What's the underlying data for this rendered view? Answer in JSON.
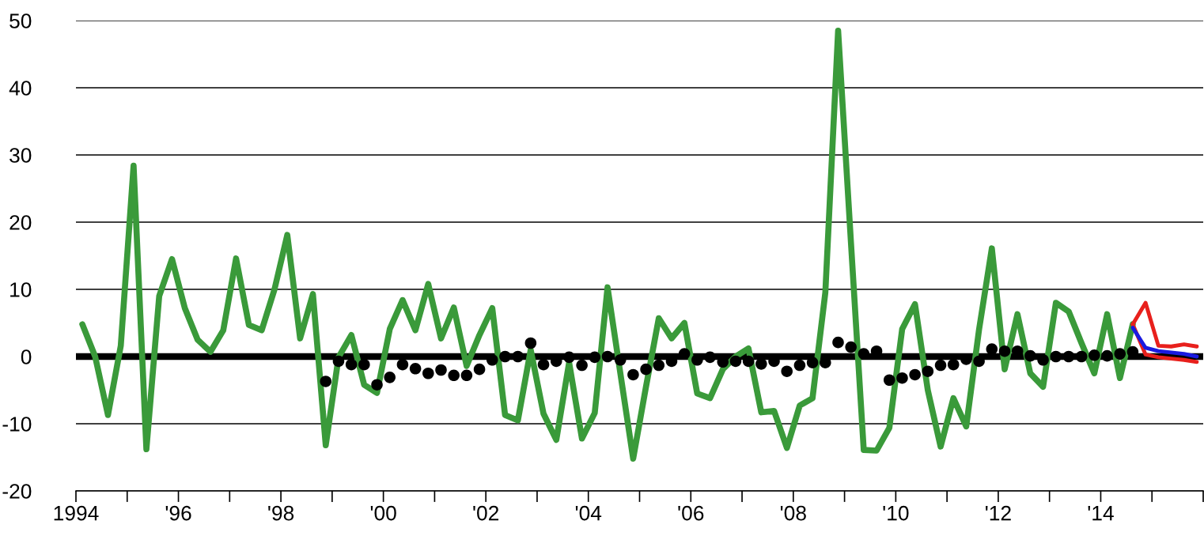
{
  "chart_data": {
    "type": "line",
    "xlim": [
      1994,
      2016
    ],
    "xticks": [
      {
        "value": 1994,
        "label": "1994"
      },
      {
        "value": 1995,
        "label": null
      },
      {
        "value": 1996,
        "label": "'96"
      },
      {
        "value": 1997,
        "label": null
      },
      {
        "value": 1998,
        "label": "'98"
      },
      {
        "value": 1999,
        "label": null
      },
      {
        "value": 2000,
        "label": "'00"
      },
      {
        "value": 2001,
        "label": null
      },
      {
        "value": 2002,
        "label": "'02"
      },
      {
        "value": 2003,
        "label": null
      },
      {
        "value": 2004,
        "label": "'04"
      },
      {
        "value": 2005,
        "label": null
      },
      {
        "value": 2006,
        "label": "'06"
      },
      {
        "value": 2007,
        "label": null
      },
      {
        "value": 2008,
        "label": "'08"
      },
      {
        "value": 2009,
        "label": null
      },
      {
        "value": 2010,
        "label": "'10"
      },
      {
        "value": 2011,
        "label": null
      },
      {
        "value": 2012,
        "label": "'12"
      },
      {
        "value": 2013,
        "label": null
      },
      {
        "value": 2014,
        "label": "'14"
      },
      {
        "value": 2015,
        "label": null
      },
      {
        "value": 2016,
        "label": null
      }
    ],
    "ylim": [
      -20,
      50
    ],
    "yticks": [
      -20,
      -10,
      0,
      10,
      20,
      30,
      40,
      50
    ],
    "grid": "y",
    "ref_lines": [
      {
        "axis": "y",
        "value": 0,
        "color": "#000000"
      }
    ],
    "series": [
      {
        "color": "#3a9a3a",
        "marker": "none",
        "x": [
          1994.125,
          1994.375,
          1994.625,
          1994.875,
          1995.125,
          1995.375,
          1995.625,
          1995.875,
          1996.125,
          1996.375,
          1996.625,
          1996.875,
          1997.125,
          1997.375,
          1997.625,
          1997.875,
          1998.125,
          1998.375,
          1998.625,
          1998.875,
          1999.125,
          1999.375,
          1999.625,
          1999.875,
          2000.125,
          2000.375,
          2000.625,
          2000.875,
          2001.125,
          2001.375,
          2001.625,
          2001.875,
          2002.125,
          2002.375,
          2002.625,
          2002.875,
          2003.125,
          2003.375,
          2003.625,
          2003.875,
          2004.125,
          2004.375,
          2004.625,
          2004.875,
          2005.125,
          2005.375,
          2005.625,
          2005.875,
          2006.125,
          2006.375,
          2006.625,
          2006.875,
          2007.125,
          2007.375,
          2007.625,
          2007.875,
          2008.125,
          2008.375,
          2008.625,
          2008.875,
          2009.125,
          2009.375,
          2009.625,
          2009.875,
          2010.125,
          2010.375,
          2010.625,
          2010.875,
          2011.125,
          2011.375,
          2011.625,
          2011.875,
          2012.125,
          2012.375,
          2012.625,
          2012.875,
          2013.125,
          2013.375,
          2013.625,
          2013.875,
          2014.125,
          2014.375,
          2014.625
        ],
        "values": [
          4.8,
          0,
          -8.7,
          1.6,
          28.4,
          -13.8,
          9.0,
          14.5,
          7.2,
          2.5,
          0.7,
          3.9,
          14.6,
          4.7,
          3.9,
          10,
          18.1,
          2.7,
          9.3,
          -13.2,
          -0.1,
          3.2,
          -4.2,
          -5.4,
          4.1,
          8.4,
          3.9,
          10.8,
          2.7,
          7.3,
          -1.4,
          3.2,
          7.2,
          -8.7,
          -9.5,
          1,
          -8.5,
          -12.4,
          -0.9,
          -12.2,
          -8.4,
          10.3,
          -2.5,
          -15.2,
          -4.5,
          5.7,
          2.7,
          5.0,
          -5.5,
          -6.2,
          -1.9,
          0,
          1.2,
          -8.3,
          -8.1,
          -13.6,
          -7.3,
          -6.2,
          9.5,
          48.5,
          17,
          -13.9,
          -14,
          -10.6,
          4.1,
          7.8,
          -5,
          -13.4,
          -6.2,
          -10.4,
          4,
          16.1,
          -1.9,
          6.3,
          -2.5,
          -4.5,
          8.0,
          6.7,
          2,
          -2.5,
          6.3,
          -3.2,
          4.8
        ]
      },
      {
        "type": "scatter",
        "color": "#000000",
        "marker": "circle",
        "x": [
          1998.875,
          1999.125,
          1999.375,
          1999.625,
          1999.875,
          2000.125,
          2000.375,
          2000.625,
          2000.875,
          2001.125,
          2001.375,
          2001.625,
          2001.875,
          2002.125,
          2002.375,
          2002.625,
          2002.875,
          2003.125,
          2003.375,
          2003.625,
          2003.875,
          2004.125,
          2004.375,
          2004.625,
          2004.875,
          2005.125,
          2005.375,
          2005.625,
          2005.875,
          2006.125,
          2006.375,
          2006.625,
          2006.875,
          2007.125,
          2007.375,
          2007.625,
          2007.875,
          2008.125,
          2008.375,
          2008.625,
          2008.875,
          2009.125,
          2009.375,
          2009.625,
          2009.875,
          2010.125,
          2010.375,
          2010.625,
          2010.875,
          2011.125,
          2011.375,
          2011.625,
          2011.875,
          2012.125,
          2012.375,
          2012.625,
          2012.875,
          2013.125,
          2013.375,
          2013.625,
          2013.875,
          2014.125,
          2014.375,
          2014.625
        ],
        "values": [
          -3.7,
          -0.7,
          -1.2,
          -1.2,
          -4.2,
          -3.1,
          -1.2,
          -1.8,
          -2.5,
          -2.0,
          -2.8,
          -2.8,
          -1.9,
          -0.5,
          0,
          0,
          2.0,
          -1.2,
          -0.7,
          -0.1,
          -1.3,
          -0.1,
          0,
          -0.5,
          -2.7,
          -1.9,
          -1.3,
          -0.7,
          0.4,
          -0.5,
          -0.1,
          -0.8,
          -0.7,
          -0.7,
          -1.1,
          -0.7,
          -2.2,
          -1.3,
          -0.9,
          -0.9,
          2.1,
          1.4,
          0.4,
          0.8,
          -3.5,
          -3.2,
          -2.7,
          -2.2,
          -1.3,
          -1.2,
          -0.4,
          -0.7,
          1.1,
          0.8,
          0.8,
          0.1,
          -0.5,
          0,
          0,
          0,
          0.2,
          0.1,
          0.4,
          0.7
        ]
      },
      {
        "type": "line",
        "color": "#e8201c",
        "marker": "none",
        "x": [
          2014.625,
          2014.875,
          2015.125,
          2015.375,
          2015.625,
          2015.875
        ],
        "values": [
          4.8,
          8.0,
          1.6,
          1.5,
          1.8,
          1.5
        ]
      },
      {
        "type": "line",
        "color": "#e8201c",
        "marker": "none",
        "x": [
          2014.625,
          2014.875,
          2015.125,
          2015.375,
          2015.625,
          2015.875
        ],
        "values": [
          4.8,
          0.3,
          -0.1,
          -0.3,
          -0.5,
          -0.8
        ]
      },
      {
        "type": "line",
        "color": "#1a1ae0",
        "marker": "none",
        "x": [
          2014.625,
          2014.875,
          2015.125,
          2015.375,
          2015.625,
          2015.875
        ],
        "values": [
          4.3,
          1.3,
          0.8,
          0.6,
          0.4,
          0.0
        ]
      }
    ]
  }
}
